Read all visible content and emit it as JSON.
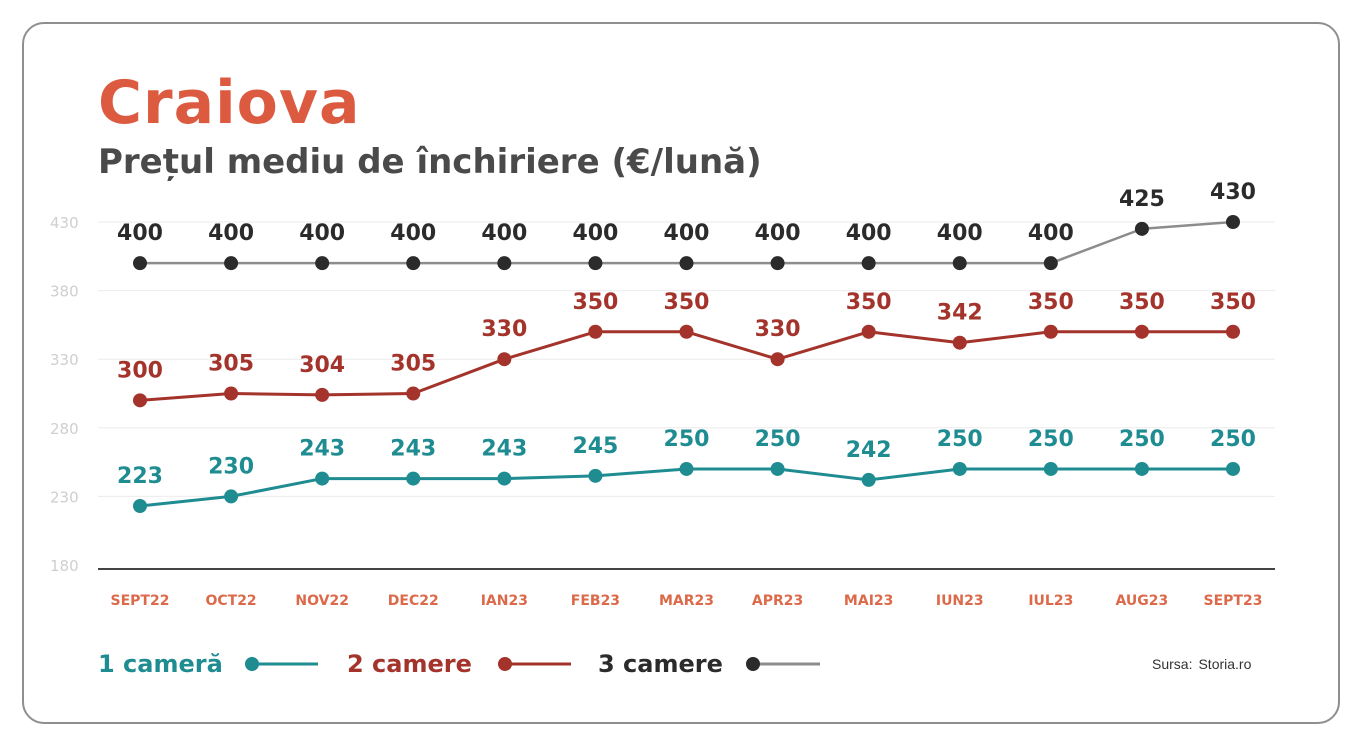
{
  "header": {
    "title": "Craiova",
    "subtitle": "Prețul mediu de închiriere (€/lună)"
  },
  "source": {
    "label": "Sursa:",
    "value": "Storia.ro"
  },
  "colors": {
    "title": "#dc5a40",
    "1 cameră": "#1f8c92",
    "2 camere": "#a3332b",
    "3 camere": "#2b2b2b",
    "3 camere line": "#8c8c8c",
    "tick": "#cfcfcf",
    "category": "#dc6a4a",
    "grid": "#ebebeb",
    "axis": "#444444"
  },
  "chart_data": {
    "type": "line",
    "title": "Craiova",
    "subtitle": "Prețul mediu de închiriere (€/lună)",
    "categories": [
      "SEPT22",
      "OCT22",
      "NOV22",
      "DEC22",
      "IAN23",
      "FEB23",
      "MAR23",
      "APR23",
      "MAI23",
      "IUN23",
      "IUL23",
      "AUG23",
      "SEPT23"
    ],
    "yticks": [
      430,
      380,
      330,
      280,
      230,
      180
    ],
    "ylim": [
      180,
      430
    ],
    "grid": true,
    "legend_position": "bottom-left",
    "series": [
      {
        "name": "1 cameră",
        "values": [
          223,
          230,
          243,
          243,
          243,
          245,
          250,
          250,
          242,
          250,
          250,
          250,
          250
        ]
      },
      {
        "name": "2 camere",
        "values": [
          300,
          305,
          304,
          305,
          330,
          350,
          350,
          330,
          350,
          342,
          350,
          350,
          350
        ]
      },
      {
        "name": "3 camere",
        "values": [
          400,
          400,
          400,
          400,
          400,
          400,
          400,
          400,
          400,
          400,
          400,
          425,
          430
        ]
      }
    ]
  }
}
